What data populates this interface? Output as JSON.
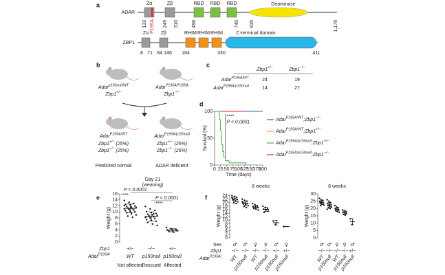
{
  "panel_a": {
    "label": "a",
    "adar": {
      "name": "ADAR",
      "domains": [
        "Zα",
        "Zβ",
        "RBD",
        "RBD",
        "RBD",
        "Deaminase"
      ],
      "mutation": "P195A",
      "positions": [
        "133",
        "249",
        "310",
        "498",
        "740",
        "835",
        "1,178"
      ]
    },
    "zbp1": {
      "name": "ZBP1",
      "domains": [
        "Zα",
        "Zβ",
        "RHIM",
        "RHIM",
        "RHIM",
        "C-terminal domain"
      ],
      "positions": [
        "8",
        "71",
        "84",
        "146",
        "184",
        "330",
        "411"
      ]
    }
  },
  "panel_b": {
    "label": "b",
    "parents": [
      {
        "adar": [
          [
            "Adar",
            "p150null/WT"
          ]
        ],
        "zbp1": [
          [
            "Zbp1",
            "+/−"
          ]
        ]
      },
      {
        "adar": [
          [
            "Adar",
            "P195A/P195A"
          ]
        ],
        "zbp1": [
          [
            "Zbp1",
            "−/−"
          ]
        ]
      }
    ],
    "offspring": [
      {
        "adar": [
          [
            "Adar",
            "P195A/WT"
          ]
        ],
        "lines": [
          [
            [
              "Zbp1",
              "+/−"
            ],
            [
              " (25%)",
              " "
            ]
          ],
          [
            [
              "Zbp1",
              "−/−"
            ],
            [
              " (25%)",
              " "
            ]
          ]
        ],
        "outcome": "Predicted normal"
      },
      {
        "adar": [
          [
            "Adar",
            "P195A/p150null"
          ]
        ],
        "lines": [
          [
            [
              "Zbp1",
              "+/−"
            ],
            [
              " (25%)",
              " "
            ]
          ],
          [
            [
              "Zbp1",
              "−/−"
            ],
            [
              " (25%)",
              " "
            ]
          ]
        ],
        "outcome": "ADAR deficient"
      }
    ]
  },
  "panel_c": {
    "label": "c",
    "columns": [
      [
        [
          "Zbp1",
          "+/−"
        ]
      ],
      [
        [
          "Zbp1",
          "−/−"
        ]
      ]
    ],
    "rows": [
      {
        "genotype": [
          [
            "Adar",
            "P195A/WT"
          ]
        ],
        "counts": [
          24,
          19
        ]
      },
      {
        "genotype": [
          [
            "Adar",
            "P195A/p150null"
          ]
        ],
        "counts": [
          14,
          27
        ]
      }
    ]
  },
  "panel_d": {
    "label": "d",
    "type": "line",
    "ylabel": "Survival (%)",
    "xlabel": "Time (days)",
    "xlim": [
      0,
      200
    ],
    "ylim": [
      0,
      100
    ],
    "xticks": [
      0,
      25,
      50,
      75,
      100,
      125,
      150,
      175,
      200
    ],
    "yticks": [
      0,
      50,
      100
    ],
    "annotation": "****",
    "pvalue": "P < 0.0001",
    "series": [
      {
        "name": [
          [
            "Adar",
            "P195A/WT"
          ],
          [
            ";Zbp1",
            "−/−"
          ]
        ],
        "color": "#3b5bab",
        "x": [
          0,
          200
        ],
        "y": [
          100,
          100
        ]
      },
      {
        "name": [
          [
            "Adar",
            "P195A/WT"
          ],
          [
            ";Zbp1",
            "+/−"
          ]
        ],
        "color": "#f7a21b",
        "x": [
          0,
          200
        ],
        "y": [
          100,
          100
        ]
      },
      {
        "name": [
          [
            "Adar",
            "P195A/p150null"
          ],
          [
            ";Zbp1",
            "+/−"
          ]
        ],
        "color": "#3fae49",
        "x": [
          0,
          20,
          20,
          24,
          24,
          27,
          27,
          30,
          30,
          34,
          34,
          38,
          38,
          45,
          45,
          60,
          60,
          130,
          130
        ],
        "y": [
          100,
          100,
          85,
          85,
          65,
          65,
          50,
          50,
          38,
          38,
          25,
          25,
          15,
          15,
          8,
          8,
          4,
          4,
          0
        ]
      },
      {
        "name": [
          [
            "Adar",
            "P195A/p150null"
          ],
          [
            ";Zbp1",
            "−/−"
          ]
        ],
        "color": "#e0262b",
        "x": [
          0,
          120
        ],
        "y": [
          100,
          100
        ]
      }
    ]
  },
  "panel_e": {
    "label": "e",
    "type": "scatter",
    "title": "Day 21",
    "subtitle": "(weaning)",
    "ylabel": "Weight (g)",
    "ylim": [
      0,
      16
    ],
    "yticks": [
      0,
      2,
      4,
      6,
      8,
      10,
      12,
      14,
      16
    ],
    "p1": "P < 0.0001",
    "s1": "****",
    "p2": "P < 0.0001",
    "s2": "****",
    "zbp1_label": "Zbp1",
    "adar_label": [
      [
        "Adar",
        "P195A/"
      ]
    ],
    "zbp1": [
      "+/−",
      "−/−",
      "+/−"
    ],
    "adar": [
      "WT",
      "p150null",
      "p150null"
    ],
    "outcome": [
      "Not affected",
      "Rescued",
      "Affected"
    ],
    "points": [
      [
        13.8,
        13.2,
        12.8,
        12.5,
        12.3,
        12.0,
        11.8,
        11.6,
        11.5,
        11.3,
        11.1,
        11.0,
        10.8,
        10.6,
        10.4,
        10.2,
        10.0,
        9.7,
        9.4,
        9.0,
        8.6,
        8.2,
        12.1,
        10.9
      ],
      [
        11.8,
        11.0,
        10.5,
        10.1,
        9.8,
        9.5,
        9.2,
        9.0,
        8.8,
        8.6,
        8.4,
        8.2,
        8.0,
        7.8,
        7.5,
        7.2,
        6.9,
        6.5,
        6.0,
        5.5,
        8.7,
        9.3
      ],
      [
        4.8,
        4.4,
        4.2,
        4.0,
        3.9,
        3.7,
        3.5,
        3.3
      ]
    ],
    "means": [
      11.2,
      8.5,
      3.9
    ],
    "sd": [
      1.4,
      1.5,
      0.5
    ]
  },
  "panel_f": {
    "label": "f",
    "sex_label": "Sex",
    "zbp1_label": "Zbp1",
    "adar_label": [
      [
        "Adar",
        "P195A/"
      ]
    ],
    "charts": [
      {
        "type": "scatter",
        "title": "8 weeks",
        "ylabel": "Weight (g)",
        "ylim": [
          0,
          25
        ],
        "yticks": [
          0,
          2,
          4,
          6,
          8,
          10,
          12,
          14,
          16,
          18,
          20,
          22,
          24
        ],
        "sex": [
          "♂",
          "♂",
          "♀",
          "♀",
          "♂",
          "♀"
        ],
        "zbp1": [
          "−/−",
          "−/−",
          "−/−",
          "−/−",
          "+/−",
          "+/−"
        ],
        "adar": [
          "WT",
          "p150null",
          "WT",
          "p150null",
          "p150null",
          "p150null"
        ],
        "points": [
          [
            24,
            23.5,
            23,
            22.6,
            22.2,
            21.8,
            21.5,
            21,
            20.5,
            20,
            19.5,
            22.8
          ],
          [
            22,
            21.3,
            20.8,
            20.2,
            19.8,
            19.5,
            19.2,
            18.8,
            18.3,
            17.8,
            17.2,
            20.5
          ],
          [
            19.5,
            18.8,
            18.2,
            17.8,
            17.5,
            17.2,
            16.8,
            16.3,
            15.8
          ],
          [
            18,
            17.3,
            16.8,
            16.3,
            15.8,
            15.2,
            14.5
          ],
          [
            9.6,
            7.6
          ],
          [
            6.4
          ]
        ],
        "means": [
          22,
          19.6,
          17.5,
          16.2,
          8.6,
          6.4
        ],
        "sd": [
          1.4,
          1.3,
          1.1,
          1.2,
          1.4,
          0
        ]
      },
      {
        "type": "scatter",
        "title": "8 weeks",
        "ylabel": "Weight (g)",
        "ylim": [
          0,
          30
        ],
        "yticks": [
          0,
          5,
          10,
          15,
          20,
          25,
          30
        ],
        "sex": [
          "♂",
          "♂",
          "♀",
          "♀",
          "♂"
        ],
        "zbp1": [
          "−/−",
          "−/−",
          "−/−",
          "−/−",
          "+/−"
        ],
        "adar": [
          "WT",
          "p150null",
          "WT",
          "p150null",
          "p150null"
        ],
        "points": [
          [
            27,
            26,
            25.5,
            25,
            24.5,
            24,
            23.5,
            23,
            22.5,
            22
          ],
          [
            26,
            25,
            24,
            23.5,
            23,
            22.5,
            22,
            21.5,
            21,
            20.5,
            20,
            19.5
          ],
          [
            22,
            21,
            20.5,
            20,
            19.5,
            19,
            18.5,
            18,
            17.5
          ],
          [
            19,
            18.5,
            18,
            17.5,
            17,
            16.5,
            16,
            15.5
          ],
          [
            13,
            9
          ]
        ],
        "means": [
          24.2,
          22.4,
          19.5,
          17.2,
          11
        ],
        "sd": [
          1.5,
          1.8,
          1.4,
          1.1,
          2
        ]
      }
    ]
  }
}
